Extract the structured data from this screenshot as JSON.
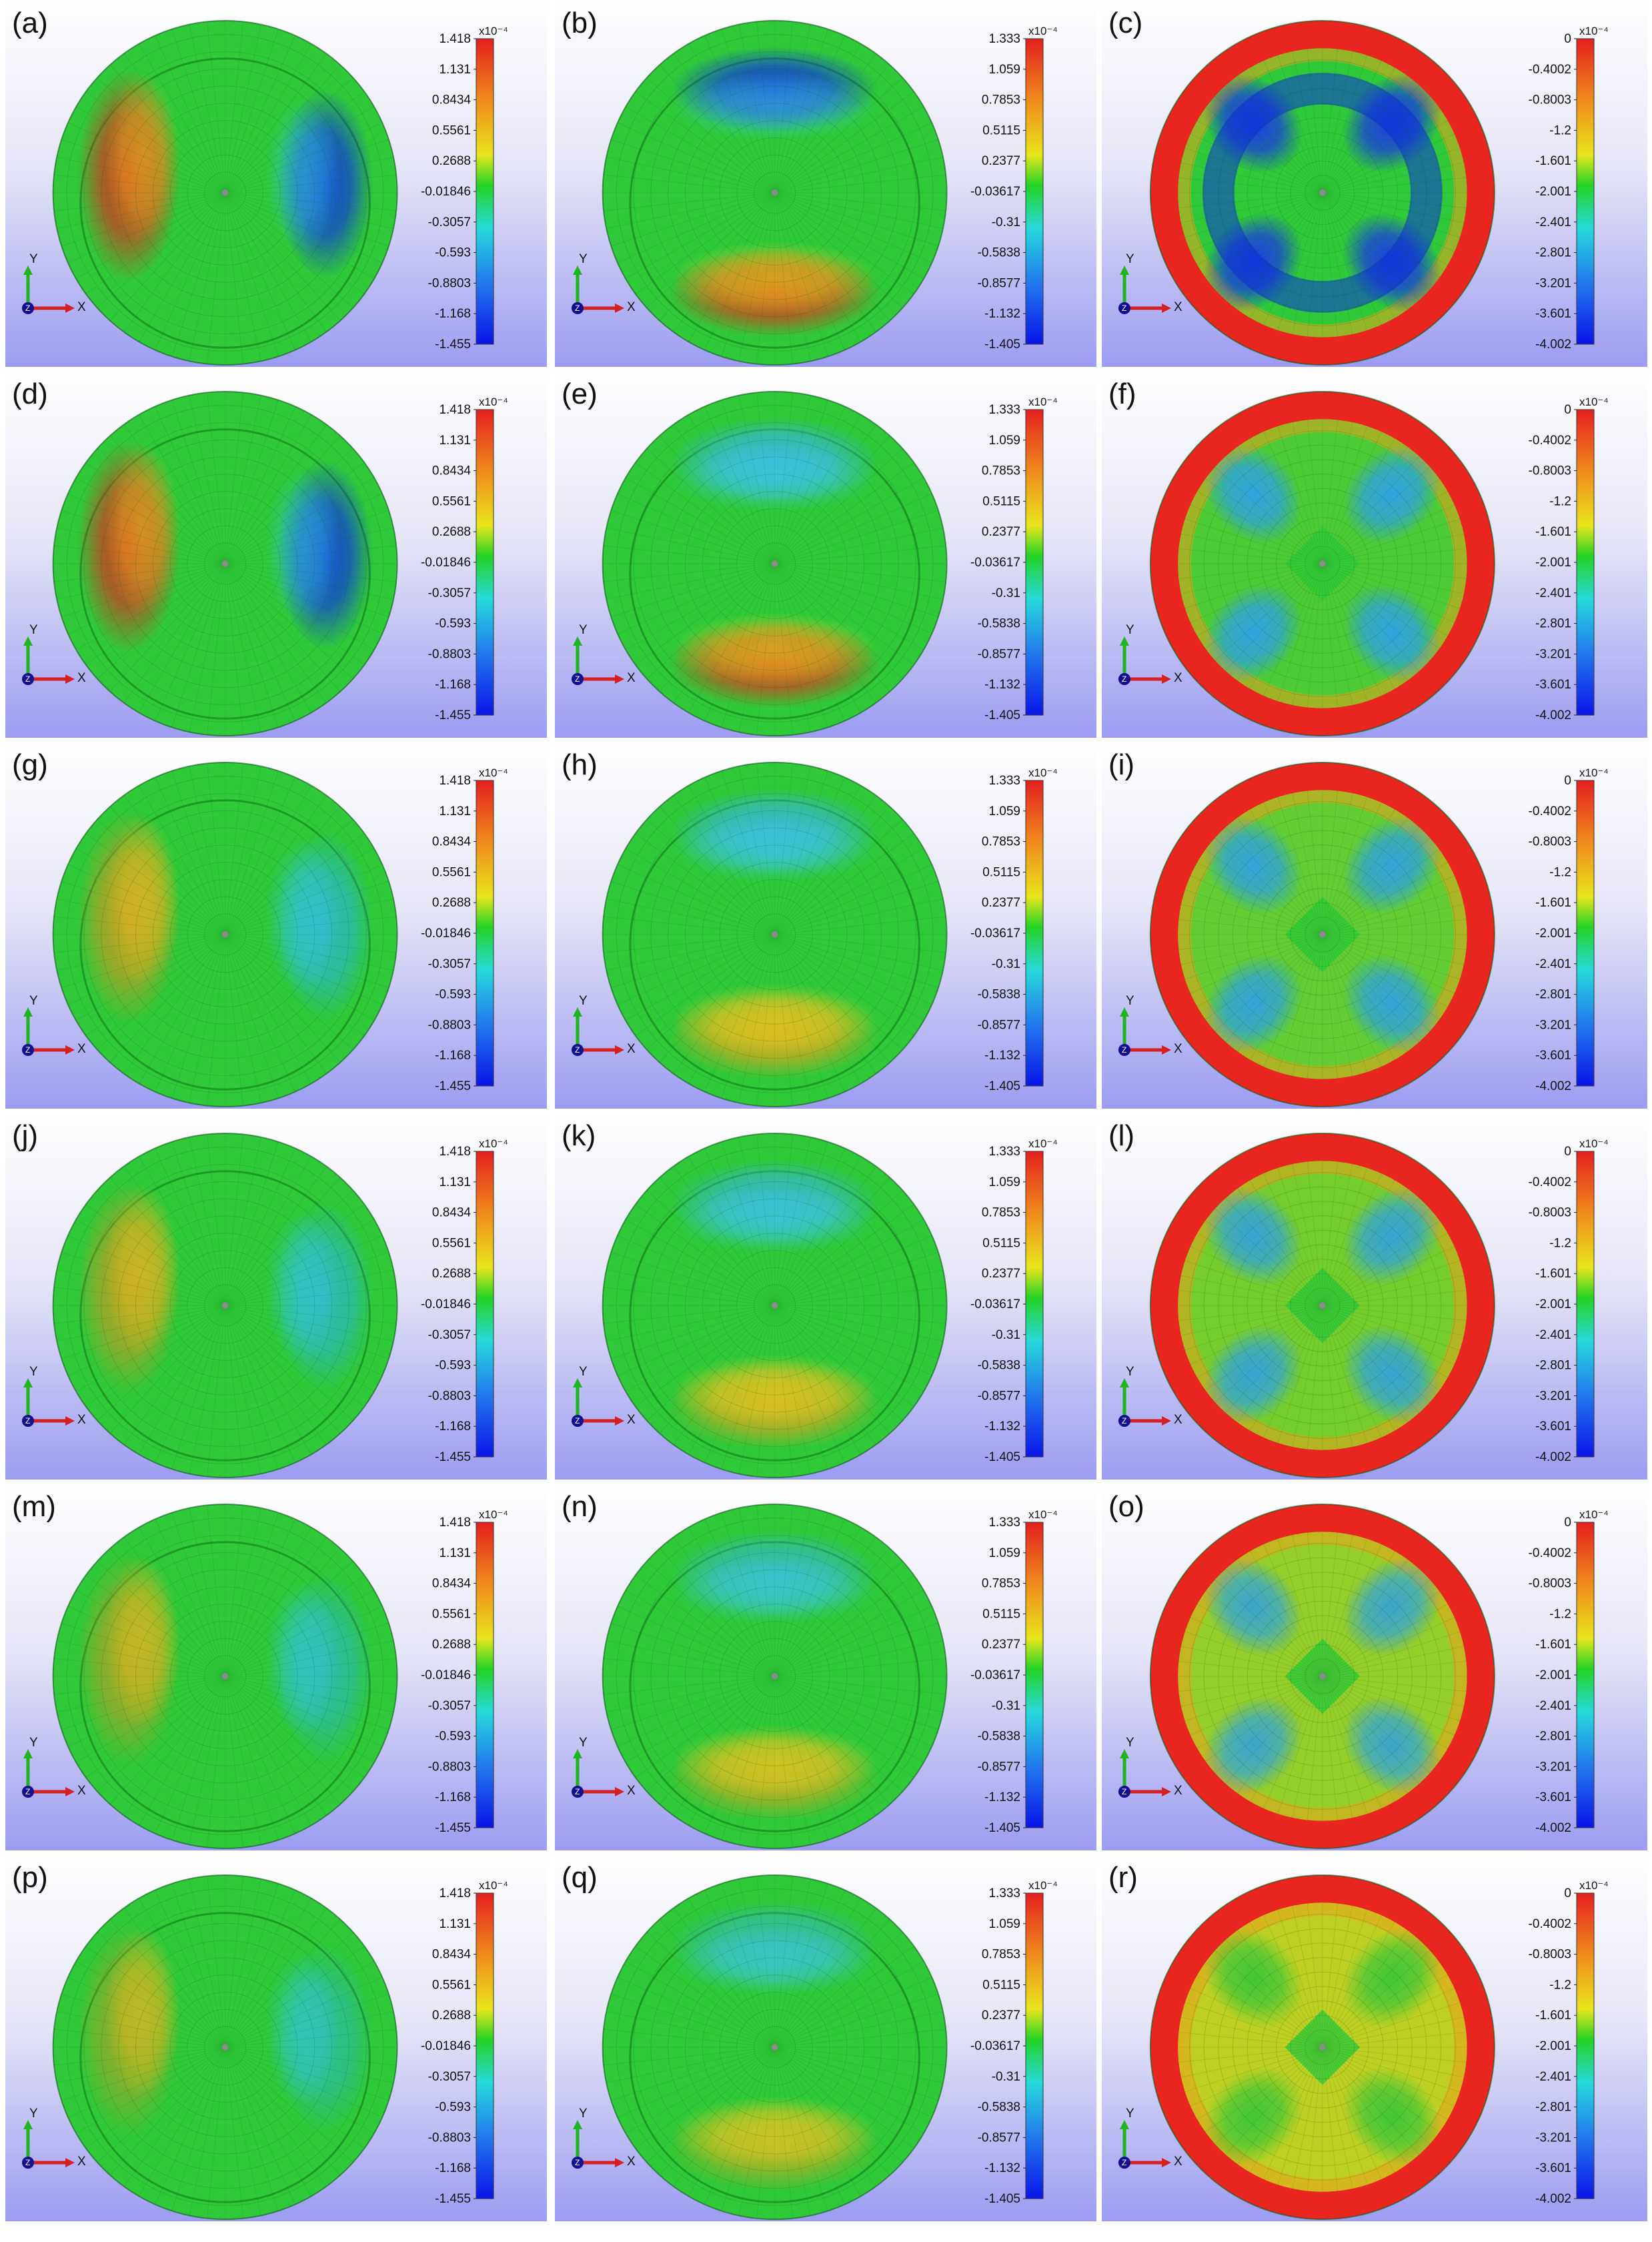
{
  "colors": {
    "background_top": "#ffffff",
    "background_bottom": "#9c9cf2",
    "disk_green": "#2fc93a",
    "red": "#e8251f",
    "blue": "#1230e6",
    "axis_x": "#d81f1f",
    "axis_y": "#1fb41f",
    "axis_z": "#101090"
  },
  "colorbar_scales": [
    {
      "exponent": "x10⁻⁴",
      "ticks": [
        "1.418",
        "1.131",
        "0.8434",
        "0.5561",
        "0.2688",
        "-0.01846",
        "-0.3057",
        "-0.593",
        "-0.8803",
        "-1.168",
        "-1.455"
      ]
    },
    {
      "exponent": "x10⁻⁴",
      "ticks": [
        "1.333",
        "1.059",
        "0.7853",
        "0.5115",
        "0.2377",
        "-0.03617",
        "-0.31",
        "-0.5838",
        "-0.8577",
        "-1.132",
        "-1.405"
      ]
    },
    {
      "exponent": "x10⁻⁴",
      "ticks": [
        "0",
        "-0.4002",
        "-0.8003",
        "-1.2",
        "-1.601",
        "-2.001",
        "-2.401",
        "-2.801",
        "-3.201",
        "-3.601",
        "-4.002"
      ]
    }
  ],
  "axis_labels": {
    "x": "X",
    "y": "Y",
    "z": "Z"
  },
  "rows": [
    {
      "panels": [
        {
          "label": "(a)",
          "scale": 0,
          "intensity": 1.0
        },
        {
          "label": "(b)",
          "scale": 1,
          "intensity": 1.0
        },
        {
          "label": "(c)",
          "scale": 2,
          "intensity": 1.0
        }
      ]
    },
    {
      "panels": [
        {
          "label": "(d)",
          "scale": 0,
          "intensity": 0.85
        },
        {
          "label": "(e)",
          "scale": 1,
          "intensity": 0.8
        },
        {
          "label": "(f)",
          "scale": 2,
          "intensity": 0.85
        }
      ]
    },
    {
      "panels": [
        {
          "label": "(g)",
          "scale": 0,
          "intensity": 0.6
        },
        {
          "label": "(h)",
          "scale": 1,
          "intensity": 0.7
        },
        {
          "label": "(i)",
          "scale": 2,
          "intensity": 0.75
        }
      ]
    },
    {
      "panels": [
        {
          "label": "(j)",
          "scale": 0,
          "intensity": 0.55
        },
        {
          "label": "(k)",
          "scale": 1,
          "intensity": 0.65
        },
        {
          "label": "(l)",
          "scale": 2,
          "intensity": 0.65
        }
      ]
    },
    {
      "panels": [
        {
          "label": "(m)",
          "scale": 0,
          "intensity": 0.45
        },
        {
          "label": "(n)",
          "scale": 1,
          "intensity": 0.55
        },
        {
          "label": "(o)",
          "scale": 2,
          "intensity": 0.5
        }
      ]
    },
    {
      "panels": [
        {
          "label": "(p)",
          "scale": 0,
          "intensity": 0.35
        },
        {
          "label": "(q)",
          "scale": 1,
          "intensity": 0.45
        },
        {
          "label": "(r)",
          "scale": 2,
          "intensity": 0.3
        }
      ]
    }
  ]
}
